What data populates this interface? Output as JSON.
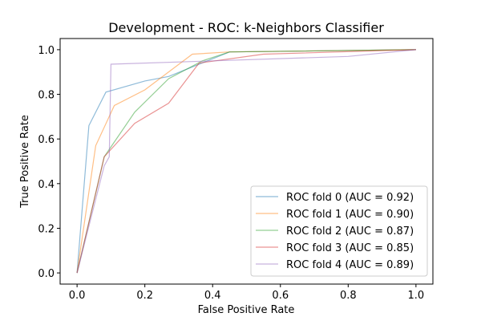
{
  "chart_data": {
    "type": "line",
    "title": "Development - ROC: k-Neighbors Classifier",
    "xlabel": "False Positive Rate",
    "ylabel": "True Positive Rate",
    "xlim": [
      -0.05,
      1.05
    ],
    "ylim": [
      -0.05,
      1.05
    ],
    "xticks": [
      0.0,
      0.2,
      0.4,
      0.6,
      0.8,
      1.0
    ],
    "yticks": [
      0.0,
      0.2,
      0.4,
      0.6,
      0.8,
      1.0
    ],
    "tick_labels_x": [
      "0.0",
      "0.2",
      "0.4",
      "0.6",
      "0.8",
      "1.0"
    ],
    "tick_labels_y": [
      "0.0",
      "0.2",
      "0.4",
      "0.6",
      "0.8",
      "1.0"
    ],
    "grid": false,
    "legend_position": "lower-right",
    "series": [
      {
        "name": "ROC fold 0 (AUC = 0.92)",
        "color": "#1f77b4",
        "x": [
          0,
          0.035,
          0.085,
          0.2,
          0.27,
          0.45,
          1.0
        ],
        "y": [
          0,
          0.66,
          0.81,
          0.86,
          0.88,
          0.99,
          1.0
        ]
      },
      {
        "name": "ROC fold 1 (AUC = 0.90)",
        "color": "#ff7f0e",
        "x": [
          0,
          0.055,
          0.11,
          0.2,
          0.34,
          0.45,
          1.0
        ],
        "y": [
          0,
          0.57,
          0.75,
          0.82,
          0.98,
          0.99,
          1.0
        ]
      },
      {
        "name": "ROC fold 2 (AUC = 0.87)",
        "color": "#2ca02c",
        "x": [
          0,
          0.08,
          0.17,
          0.27,
          0.37,
          0.45,
          1.0
        ],
        "y": [
          0,
          0.52,
          0.72,
          0.87,
          0.95,
          0.99,
          1.0
        ]
      },
      {
        "name": "ROC fold 3 (AUC = 0.85)",
        "color": "#d62728",
        "x": [
          0,
          0.08,
          0.17,
          0.27,
          0.36,
          0.55,
          1.0
        ],
        "y": [
          0,
          0.52,
          0.67,
          0.76,
          0.94,
          0.98,
          1.0
        ]
      },
      {
        "name": "ROC fold 4 (AUC = 0.89)",
        "color": "#9467bd",
        "x": [
          0,
          0.08,
          0.095,
          0.1,
          0.8,
          1.0
        ],
        "y": [
          0,
          0.48,
          0.52,
          0.935,
          0.97,
          1.0
        ]
      }
    ]
  }
}
